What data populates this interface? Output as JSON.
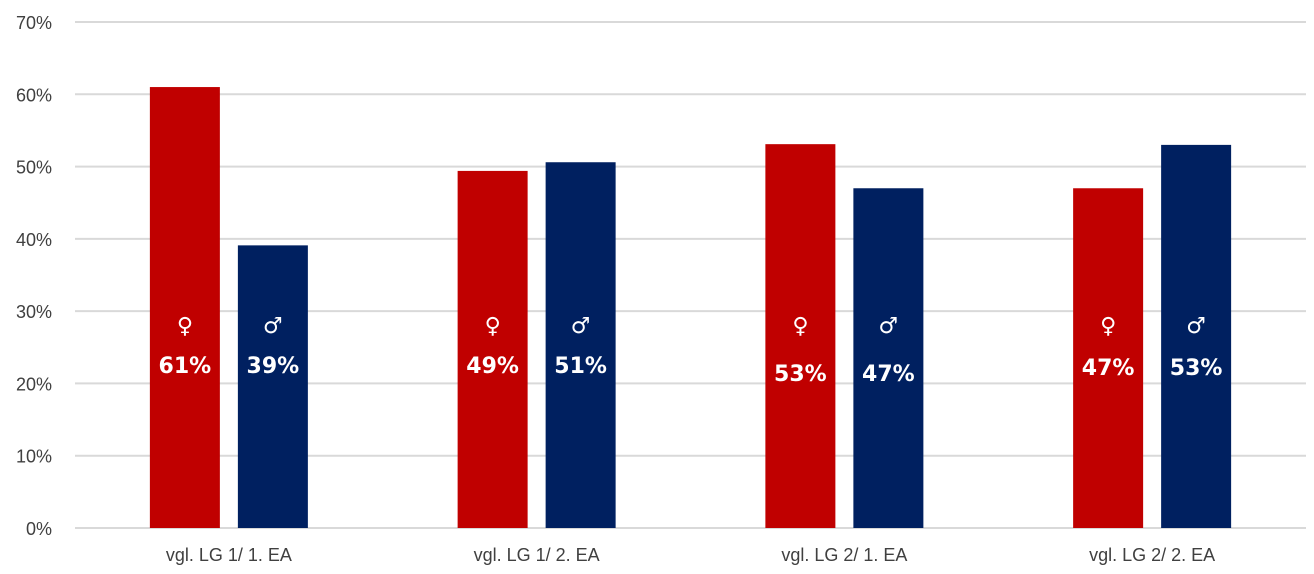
{
  "chart_data": {
    "type": "bar",
    "categories": [
      "vgl. LG 1/ 1. EA",
      "vgl. LG 1/ 2. EA",
      "vgl. LG 2/ 1. EA",
      "vgl. LG 2/ 2. EA"
    ],
    "series": [
      {
        "symbol": "♀",
        "color": "#c00000",
        "values": [
          61,
          49.4,
          53.1,
          47
        ],
        "labels": [
          "61%",
          "49%",
          "53%",
          "47%"
        ]
      },
      {
        "symbol": "♂",
        "color": "#002060",
        "values": [
          39.1,
          50.6,
          47,
          53
        ],
        "labels": [
          "39%",
          "51%",
          "47%",
          "53%"
        ]
      }
    ],
    "y_ticks": [
      "0%",
      "10%",
      "20%",
      "30%",
      "40%",
      "50%",
      "60%",
      "70%"
    ],
    "ylim": [
      0,
      70
    ],
    "grid": true,
    "title": "",
    "xlabel": "",
    "ylabel": ""
  }
}
